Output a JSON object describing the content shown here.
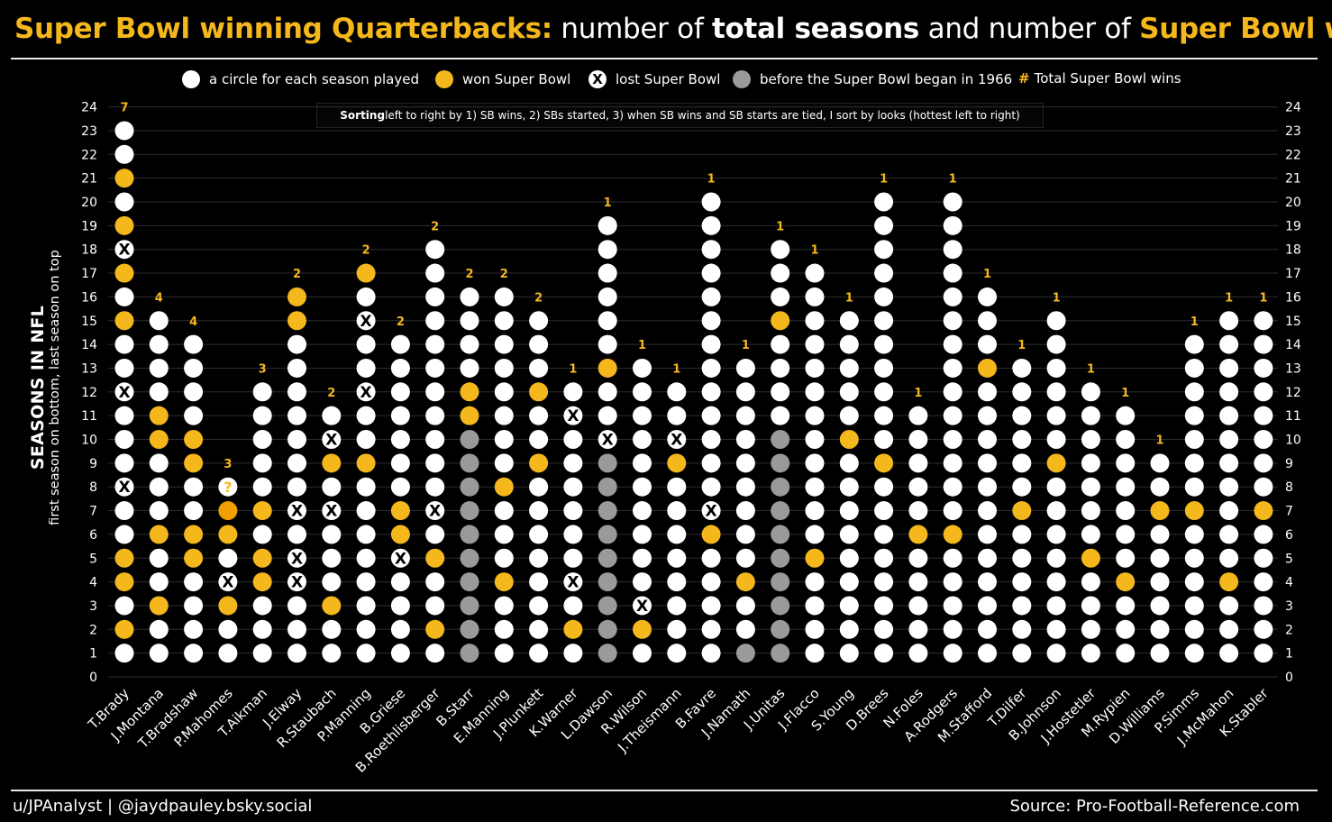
{
  "title": {
    "part1": "Super Bowl winning Quarterbacks:",
    "part2": " number of ",
    "part3": "total seasons",
    "part4": " and number of ",
    "part5": "Super Bowl wins"
  },
  "legend": {
    "season": "a circle for each season played",
    "won": "won Super Bowl",
    "lost": "lost Super Bowl",
    "lost_mark": "X",
    "pre": "before the Super Bowl began in 1966",
    "hash": "#",
    "total": "Total Super Bowl wins"
  },
  "sort_note": {
    "bold": "Sorting",
    "rest": " left to right by 1) SB wins, 2) SBs started, 3) when SB wins and SB starts are tied, I sort by looks (hottest left to right)"
  },
  "yaxis": {
    "title": "SEASONS IN NFL",
    "subtitle": "first season on bottom, last season on top"
  },
  "footer": {
    "left": "u/JPAnalyst  |  @jaydpauley.bsky.social",
    "right": "Source: Pro-Football-Reference.com"
  },
  "colors": {
    "season": "#ffffff",
    "won": "#f5b81c",
    "won_pending": "#f0a000",
    "pre_sb": "#9a9a9a",
    "accent": "#f5b81c",
    "background": "#000000"
  },
  "chart_data": {
    "type": "scatter",
    "ylim": [
      0,
      24
    ],
    "yticks": [
      0,
      1,
      2,
      3,
      4,
      5,
      6,
      7,
      8,
      9,
      10,
      11,
      12,
      13,
      14,
      15,
      16,
      17,
      18,
      19,
      20,
      21,
      22,
      23,
      24
    ],
    "qbs": [
      {
        "name": "T.Brady",
        "seasons": 23,
        "sb_wins": "7",
        "won": [
          2,
          5,
          4,
          15,
          17,
          19,
          21
        ],
        "lost": [
          8,
          12,
          18
        ],
        "pre": [],
        "pending": []
      },
      {
        "name": "J.Montana",
        "seasons": 15,
        "sb_wins": "4",
        "won": [
          3,
          6,
          10,
          11
        ],
        "lost": [],
        "pre": [],
        "pending": []
      },
      {
        "name": "T.Bradshaw",
        "seasons": 14,
        "sb_wins": "4",
        "won": [
          5,
          6,
          9,
          10
        ],
        "lost": [],
        "pre": [],
        "pending": []
      },
      {
        "name": "P.Mahomes",
        "seasons": 8,
        "sb_wins": "3",
        "won": [
          3,
          6
        ],
        "lost": [
          4
        ],
        "pre": [],
        "pending": [
          7
        ],
        "unknown": [
          8
        ]
      },
      {
        "name": "T.Aikman",
        "seasons": 12,
        "sb_wins": "3",
        "won": [
          4,
          5,
          7
        ],
        "lost": [],
        "pre": [],
        "pending": []
      },
      {
        "name": "J.Elway",
        "seasons": 16,
        "sb_wins": "2",
        "won": [
          15,
          16
        ],
        "lost": [
          4,
          5,
          7
        ],
        "pre": [],
        "pending": []
      },
      {
        "name": "R.Staubach",
        "seasons": 11,
        "sb_wins": "2",
        "won": [
          3,
          9
        ],
        "lost": [
          7,
          10
        ],
        "pre": [],
        "pending": []
      },
      {
        "name": "P.Manning",
        "seasons": 17,
        "sb_wins": "2",
        "won": [
          9,
          17
        ],
        "lost": [
          12,
          15
        ],
        "pre": [],
        "pending": []
      },
      {
        "name": "B.Griese",
        "seasons": 14,
        "sb_wins": "2",
        "won": [
          6,
          7
        ],
        "lost": [
          5
        ],
        "pre": [],
        "pending": []
      },
      {
        "name": "B.Roethlisberger",
        "seasons": 18,
        "sb_wins": "2",
        "won": [
          2,
          5
        ],
        "lost": [
          7
        ],
        "pre": [],
        "pending": []
      },
      {
        "name": "B.Starr",
        "seasons": 16,
        "sb_wins": "2",
        "won": [
          11,
          12
        ],
        "lost": [],
        "pre": [
          1,
          2,
          3,
          4,
          5,
          6,
          7,
          8,
          9,
          10
        ],
        "pending": []
      },
      {
        "name": "E.Manning",
        "seasons": 16,
        "sb_wins": "2",
        "won": [
          4,
          8
        ],
        "lost": [],
        "pre": [],
        "pending": []
      },
      {
        "name": "J.Plunkett",
        "seasons": 15,
        "sb_wins": "2",
        "won": [
          9,
          12
        ],
        "lost": [],
        "pre": [],
        "pending": []
      },
      {
        "name": "K.Warner",
        "seasons": 12,
        "sb_wins": "1",
        "won": [
          2
        ],
        "lost": [
          4,
          11
        ],
        "pre": [],
        "pending": []
      },
      {
        "name": "L.Dawson",
        "seasons": 19,
        "sb_wins": "1",
        "won": [
          13
        ],
        "lost": [
          10
        ],
        "pre": [
          1,
          2,
          3,
          4,
          5,
          6,
          7,
          8,
          9
        ],
        "pending": []
      },
      {
        "name": "R.Wilson",
        "seasons": 13,
        "sb_wins": "1",
        "won": [
          2
        ],
        "lost": [
          3
        ],
        "pre": [],
        "pending": []
      },
      {
        "name": "J.Theismann",
        "seasons": 12,
        "sb_wins": "1",
        "won": [
          9
        ],
        "lost": [
          10
        ],
        "pre": [],
        "pending": []
      },
      {
        "name": "B.Favre",
        "seasons": 20,
        "sb_wins": "1",
        "won": [
          6
        ],
        "lost": [
          7
        ],
        "pre": [],
        "pending": []
      },
      {
        "name": "J.Namath",
        "seasons": 13,
        "sb_wins": "1",
        "won": [
          4
        ],
        "lost": [],
        "pre": [
          1
        ],
        "pending": []
      },
      {
        "name": "J.Unitas",
        "seasons": 18,
        "sb_wins": "1",
        "won": [
          15
        ],
        "lost": [],
        "pre": [
          1,
          2,
          3,
          4,
          5,
          6,
          7,
          8,
          9,
          10
        ],
        "pending": []
      },
      {
        "name": "J.Flacco",
        "seasons": 17,
        "sb_wins": "1",
        "won": [
          5
        ],
        "lost": [],
        "pre": [],
        "pending": []
      },
      {
        "name": "S.Young",
        "seasons": 15,
        "sb_wins": "1",
        "won": [
          10
        ],
        "lost": [],
        "pre": [],
        "pending": []
      },
      {
        "name": "D.Brees",
        "seasons": 20,
        "sb_wins": "1",
        "won": [
          9
        ],
        "lost": [],
        "pre": [],
        "pending": []
      },
      {
        "name": "N.Foles",
        "seasons": 11,
        "sb_wins": "1",
        "won": [
          6
        ],
        "lost": [],
        "pre": [],
        "pending": []
      },
      {
        "name": "A.Rodgers",
        "seasons": 20,
        "sb_wins": "1",
        "won": [
          6
        ],
        "lost": [],
        "pre": [],
        "pending": []
      },
      {
        "name": "M.Stafford",
        "seasons": 16,
        "sb_wins": "1",
        "won": [
          13
        ],
        "lost": [],
        "pre": [],
        "pending": []
      },
      {
        "name": "T.Dilfer",
        "seasons": 13,
        "sb_wins": "1",
        "won": [
          7
        ],
        "lost": [],
        "pre": [],
        "pending": []
      },
      {
        "name": "B.Johnson",
        "seasons": 15,
        "sb_wins": "1",
        "won": [
          9
        ],
        "lost": [],
        "pre": [],
        "pending": []
      },
      {
        "name": "J.Hostetler",
        "seasons": 12,
        "sb_wins": "1",
        "won": [
          5
        ],
        "lost": [],
        "pre": [],
        "pending": []
      },
      {
        "name": "M.Rypien",
        "seasons": 11,
        "sb_wins": "1",
        "won": [
          4
        ],
        "lost": [],
        "pre": [],
        "pending": []
      },
      {
        "name": "D.Williams",
        "seasons": 9,
        "sb_wins": "1",
        "won": [
          7
        ],
        "lost": [],
        "pre": [],
        "pending": []
      },
      {
        "name": "P.Simms",
        "seasons": 14,
        "sb_wins": "1",
        "won": [
          7
        ],
        "lost": [],
        "pre": [],
        "pending": []
      },
      {
        "name": "J.McMahon",
        "seasons": 15,
        "sb_wins": "1",
        "won": [
          4
        ],
        "lost": [],
        "pre": [],
        "pending": []
      },
      {
        "name": "K.Stabler",
        "seasons": 15,
        "sb_wins": "1",
        "won": [
          7
        ],
        "lost": [],
        "pre": [],
        "pending": []
      }
    ],
    "unknown_mark": "?",
    "lost_mark": "X"
  }
}
